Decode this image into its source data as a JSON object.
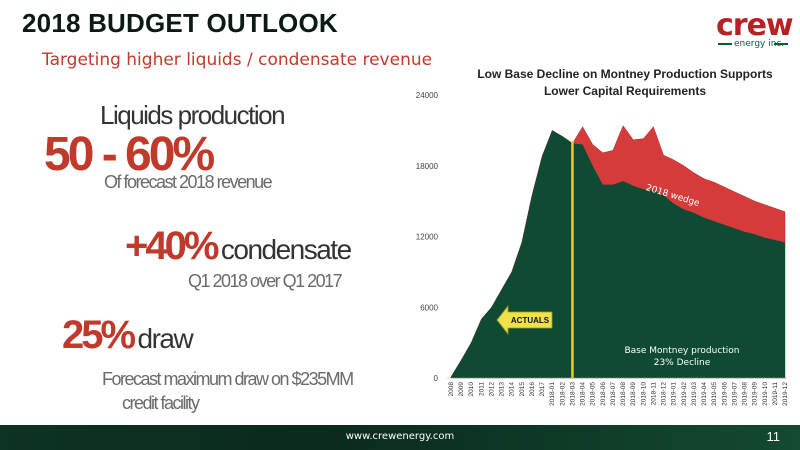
{
  "slide": {
    "title": "2018 BUDGET OUTLOOK",
    "subtitle": "Targeting higher liquids / condensate revenue"
  },
  "logo": {
    "word": "crew",
    "sub": "energy inc."
  },
  "stats": {
    "liquids_label": "Liquids production",
    "liquids_value": "50 - 60%",
    "liquids_desc": "Of forecast 2018 revenue",
    "condensate_value": "+40%",
    "condensate_word": "condensate",
    "condensate_desc": "Q1 2018 over Q1 2017",
    "draw_value": "25%",
    "draw_word": "draw",
    "draw_desc_line1": "Forecast maximum draw on $235MM",
    "draw_desc_line2": "credit facility"
  },
  "chart_data": {
    "type": "area",
    "title": "Low Base Decline on Montney Production Supports Lower Capital Requirements",
    "xlabel": "",
    "ylabel": "",
    "ylim": [
      0,
      24000
    ],
    "yticks": [
      0,
      6000,
      12000,
      18000,
      24000
    ],
    "grid": false,
    "categories": [
      "2008",
      "2009",
      "2010",
      "2011",
      "2012",
      "2013",
      "2014",
      "2015",
      "2016",
      "2017",
      "2018-01",
      "2018-02",
      "2018-03",
      "2018-04",
      "2018-05",
      "2018-06",
      "2018-07",
      "2018-08",
      "2018-09",
      "2018-10",
      "2018-11",
      "2018-12",
      "2019-01",
      "2019-02",
      "2019-03",
      "2019-04",
      "2019-05",
      "2019-06",
      "2019-07",
      "2019-08",
      "2019-09",
      "2019-10",
      "2019-11",
      "2019-12"
    ],
    "series": [
      {
        "name": "Base Montney production",
        "color": "#0f4a33",
        "values": [
          100,
          1500,
          3000,
          5000,
          6000,
          7500,
          9000,
          11500,
          15500,
          18800,
          21000,
          20500,
          19900,
          19800,
          18000,
          16400,
          16400,
          16700,
          16300,
          16000,
          15900,
          15500,
          14800,
          14300,
          14000,
          13600,
          13300,
          13000,
          12700,
          12400,
          12200,
          11900,
          11700,
          11500
        ]
      },
      {
        "name": "2018 wedge",
        "color": "#d63b3b",
        "values": [
          0,
          0,
          0,
          0,
          0,
          0,
          0,
          0,
          0,
          0,
          0,
          0,
          0,
          1500,
          1800,
          2700,
          2900,
          4700,
          3900,
          4300,
          5400,
          3400,
          3700,
          3700,
          3400,
          3300,
          3300,
          3200,
          3100,
          3000,
          2800,
          2800,
          2700,
          2600
        ]
      }
    ],
    "annotations": {
      "actuals": "ACTUALS",
      "wedge_label": "2018 wedge",
      "base_label_line1": "Base Montney production",
      "base_label_line2": "23% Decline",
      "divider_category": "2018-03"
    }
  },
  "footer": {
    "url": "www.crewenergy.com",
    "page": "11"
  }
}
